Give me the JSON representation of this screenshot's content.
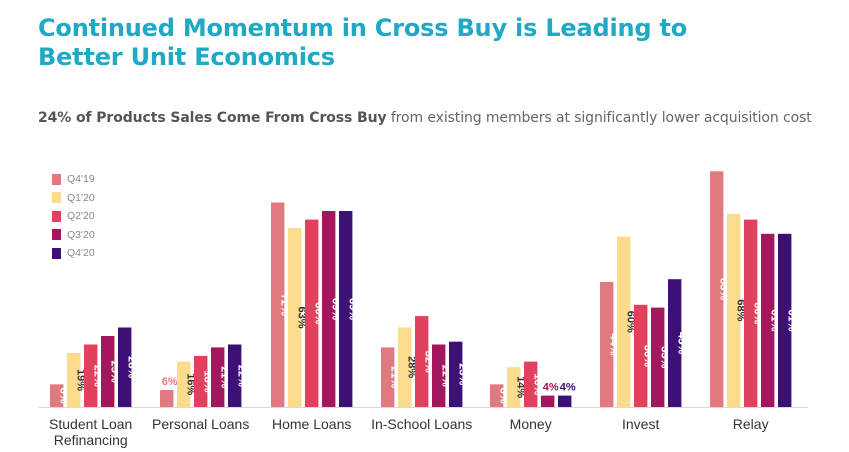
{
  "page": {
    "title_line1": "Continued Momentum in Cross Buy is Leading to",
    "title_line2": "Better Unit Economics",
    "subtitle_bold": "24% of Products Sales Come From Cross Buy",
    "subtitle_rest": " from existing members at significantly lower acquisition cost"
  },
  "chart_data": {
    "type": "bar",
    "categories": [
      "Student Loan Refinancing",
      "Personal Loans",
      "Home Loans",
      "In-School Loans",
      "Money",
      "Invest",
      "Relay"
    ],
    "category_labels": [
      [
        "Student Loan",
        "Refinancing"
      ],
      [
        "Personal Loans"
      ],
      [
        "Home Loans"
      ],
      [
        "In-School Loans"
      ],
      [
        "Money"
      ],
      [
        "Invest"
      ],
      [
        "Relay"
      ]
    ],
    "series": [
      {
        "name": "Q4'19",
        "color": "#E07A80",
        "values": [
          8,
          6,
          72,
          21,
          8,
          44,
          83
        ]
      },
      {
        "name": "Q1'20",
        "color": "#FBDB8C",
        "values": [
          19,
          16,
          63,
          28,
          14,
          60,
          68
        ]
      },
      {
        "name": "Q2'20",
        "color": "#E0425D",
        "values": [
          22,
          18,
          66,
          32,
          16,
          36,
          66
        ]
      },
      {
        "name": "Q3'20",
        "color": "#A3175F",
        "values": [
          25,
          21,
          69,
          22,
          4,
          35,
          61
        ]
      },
      {
        "name": "Q4'20",
        "color": "#3C1074",
        "values": [
          28,
          22,
          69,
          23,
          4,
          45,
          61
        ]
      }
    ],
    "value_suffix": "%",
    "legend_position": "top-left",
    "grid": false
  }
}
